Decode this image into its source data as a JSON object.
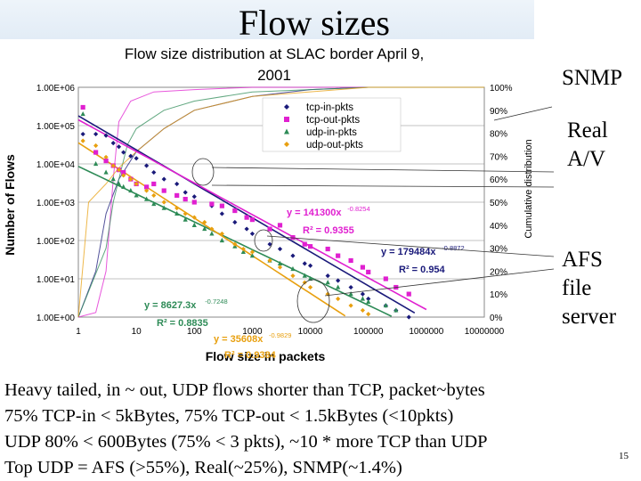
{
  "slide": {
    "title": "Flow sizes",
    "page_number": "15",
    "callouts": {
      "snmp": "SNMP",
      "real_line1": "Real",
      "real_line2": "A/V",
      "afs_line1": "AFS",
      "afs_line2": "file",
      "afs_line3": "server"
    },
    "body_lines": [
      "Heavy tailed, in ~ out, UDP flows shorter than TCP, packet~bytes",
      "75% TCP-in < 5kBytes, 75% TCP-out < 1.5kBytes (<10pkts)",
      "UDP 80% < 600Bytes (75% < 3 pkts), ~10 * more TCP than UDP",
      "Top UDP = AFS (>55%), Real(~25%), SNMP(~1.4%)"
    ]
  },
  "chart_data": {
    "type": "scatter",
    "title_line1": "Flow size distribution at SLAC border April 9,",
    "title_line2": "2001",
    "xlabel": "Flow size in packets",
    "ylabel": "Number of Flows",
    "y2label": "Cumulative distribution",
    "x_scale": "log",
    "y_scale": "log",
    "xlim": [
      1,
      10000000
    ],
    "ylim": [
      1,
      1000000
    ],
    "y2lim": [
      0,
      100
    ],
    "x_ticks": [
      "1",
      "10",
      "100",
      "1000",
      "10000",
      "100000",
      "1000000",
      "10000000"
    ],
    "y_ticks": [
      "1.00E+00",
      "1.00E+01",
      "1.00E+02",
      "1.00E+03",
      "1.00E+04",
      "1.00E+05",
      "1.00E+06"
    ],
    "y2_ticks": [
      "0%",
      "10%",
      "20%",
      "30%",
      "40%",
      "50%",
      "60%",
      "70%",
      "80%",
      "90%",
      "100%"
    ],
    "grid": true,
    "legend_position": "top-right",
    "series": [
      {
        "name": "tcp-in-pkts",
        "color": "#1a1a7a",
        "marker": "diamond",
        "fit": {
          "a": 179484,
          "b": -0.8872,
          "label": "y = 179484x",
          "exponent": "-0.8872",
          "r2": "0.954"
        },
        "points": [
          [
            1.2,
            60000
          ],
          [
            2,
            60000
          ],
          [
            3,
            55000
          ],
          [
            4,
            35000
          ],
          [
            5,
            28000
          ],
          [
            6,
            20000
          ],
          [
            8,
            16000
          ],
          [
            10,
            14000
          ],
          [
            15,
            9000
          ],
          [
            20,
            6000
          ],
          [
            30,
            4000
          ],
          [
            50,
            3000
          ],
          [
            70,
            1800
          ],
          [
            100,
            1400
          ],
          [
            200,
            800
          ],
          [
            300,
            500
          ],
          [
            500,
            300
          ],
          [
            800,
            200
          ],
          [
            1000,
            150
          ],
          [
            2000,
            80
          ],
          [
            3000,
            60
          ],
          [
            5000,
            40
          ],
          [
            8000,
            25
          ],
          [
            10000,
            22
          ],
          [
            20000,
            12
          ],
          [
            30000,
            9
          ],
          [
            50000,
            6
          ],
          [
            80000,
            4
          ],
          [
            100000,
            3
          ],
          [
            200000,
            2
          ],
          [
            300000,
            1.5
          ],
          [
            500000,
            1
          ]
        ],
        "cdf": [
          [
            1,
            0
          ],
          [
            2,
            20
          ],
          [
            3,
            45
          ],
          [
            5,
            60
          ],
          [
            10,
            72
          ],
          [
            30,
            82
          ],
          [
            100,
            90
          ],
          [
            1000,
            96
          ],
          [
            10000,
            99
          ],
          [
            100000,
            100
          ],
          [
            10000000,
            100
          ]
        ]
      },
      {
        "name": "tcp-out-pkts",
        "color": "#e020d0",
        "marker": "square",
        "fit": {
          "a": 141300,
          "b": -0.8254,
          "label": "y = 141300x",
          "exponent": "-0.8254",
          "r2": "0.9355"
        },
        "points": [
          [
            1.2,
            300000
          ],
          [
            2,
            20000
          ],
          [
            3,
            12000
          ],
          [
            4,
            9000
          ],
          [
            5,
            7000
          ],
          [
            6,
            6000
          ],
          [
            8,
            4000
          ],
          [
            10,
            3000
          ],
          [
            15,
            2500
          ],
          [
            20,
            3000
          ],
          [
            30,
            2000
          ],
          [
            50,
            1500
          ],
          [
            70,
            1200
          ],
          [
            100,
            1000
          ],
          [
            200,
            900
          ],
          [
            300,
            800
          ],
          [
            500,
            600
          ],
          [
            800,
            400
          ],
          [
            1000,
            350
          ],
          [
            2000,
            200
          ],
          [
            3000,
            250
          ],
          [
            5000,
            120
          ],
          [
            8000,
            80
          ],
          [
            10000,
            70
          ],
          [
            20000,
            60
          ],
          [
            30000,
            40
          ],
          [
            50000,
            30
          ],
          [
            80000,
            20
          ],
          [
            100000,
            15
          ],
          [
            200000,
            10
          ],
          [
            300000,
            6
          ],
          [
            500000,
            4
          ]
        ],
        "cdf": [
          [
            1,
            0
          ],
          [
            2,
            2
          ],
          [
            3,
            20
          ],
          [
            4,
            60
          ],
          [
            5,
            85
          ],
          [
            8,
            94
          ],
          [
            20,
            98
          ],
          [
            100,
            99
          ],
          [
            1000,
            100
          ],
          [
            10000000,
            100
          ]
        ]
      },
      {
        "name": "udp-in-pkts",
        "color": "#2e8b57",
        "marker": "triangle",
        "fit": {
          "a": 8627.3,
          "b": -0.7248,
          "label": "y = 8627.3x",
          "exponent": "-0.7248",
          "r2": "0.8835"
        },
        "points": [
          [
            1.2,
            200000
          ],
          [
            2,
            10000
          ],
          [
            3,
            6000
          ],
          [
            4,
            4000
          ],
          [
            5,
            3000
          ],
          [
            6,
            2500
          ],
          [
            8,
            2000
          ],
          [
            10,
            1500
          ],
          [
            15,
            1200
          ],
          [
            20,
            900
          ],
          [
            30,
            700
          ],
          [
            50,
            500
          ],
          [
            70,
            350
          ],
          [
            100,
            250
          ],
          [
            150,
            200
          ],
          [
            200,
            150
          ],
          [
            300,
            100
          ],
          [
            500,
            70
          ],
          [
            700,
            50
          ],
          [
            1000,
            40
          ],
          [
            2000,
            30
          ],
          [
            3000,
            25
          ],
          [
            5000,
            18
          ],
          [
            8000,
            12
          ],
          [
            10000,
            10
          ],
          [
            20000,
            8
          ],
          [
            30000,
            6
          ],
          [
            50000,
            4
          ],
          [
            80000,
            3
          ],
          [
            100000,
            2.5
          ],
          [
            200000,
            2
          ],
          [
            300000,
            1.5
          ]
        ],
        "cdf": [
          [
            1,
            0
          ],
          [
            3,
            30
          ],
          [
            4,
            50
          ],
          [
            5,
            60
          ],
          [
            7,
            75
          ],
          [
            10,
            82
          ],
          [
            30,
            90
          ],
          [
            100,
            94
          ],
          [
            1000,
            98
          ],
          [
            100000,
            100
          ],
          [
            10000000,
            100
          ]
        ]
      },
      {
        "name": "udp-out-pkts",
        "color": "#e8a010",
        "marker": "diamond",
        "fit": {
          "a": 35608,
          "b": -0.9829,
          "label": "y = 35608x",
          "exponent": "-0.9829",
          "r2": "0.9384"
        },
        "points": [
          [
            1.2,
            40000
          ],
          [
            2,
            30000
          ],
          [
            3,
            15000
          ],
          [
            4,
            9000
          ],
          [
            5,
            7000
          ],
          [
            6,
            5000
          ],
          [
            8,
            4000
          ],
          [
            10,
            3000
          ],
          [
            15,
            2000
          ],
          [
            20,
            1500
          ],
          [
            30,
            1000
          ],
          [
            50,
            700
          ],
          [
            70,
            500
          ],
          [
            100,
            400
          ],
          [
            150,
            300
          ],
          [
            200,
            200
          ],
          [
            300,
            150
          ],
          [
            500,
            80
          ],
          [
            700,
            60
          ],
          [
            1000,
            50
          ],
          [
            2000,
            30
          ],
          [
            3000,
            20
          ],
          [
            5000,
            12
          ],
          [
            8000,
            8
          ],
          [
            10000,
            6
          ],
          [
            20000,
            4
          ],
          [
            30000,
            3
          ],
          [
            50000,
            2
          ],
          [
            80000,
            1.5
          ],
          [
            100000,
            1.2
          ]
        ],
        "cdf": [
          [
            1,
            0
          ],
          [
            1.5,
            50
          ],
          [
            3,
            58
          ],
          [
            5,
            65
          ],
          [
            10,
            72
          ],
          [
            30,
            82
          ],
          [
            100,
            90
          ],
          [
            1000,
            96
          ],
          [
            100000,
            100
          ],
          [
            10000000,
            100
          ]
        ]
      }
    ]
  }
}
